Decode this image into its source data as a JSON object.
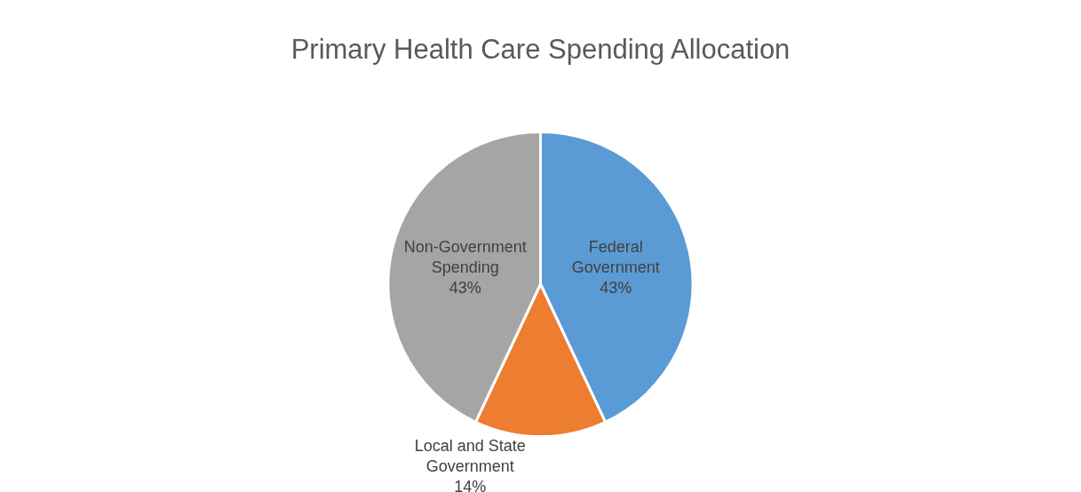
{
  "chart_data": {
    "type": "pie",
    "title": "Primary Health Care Spending Allocation",
    "categories": [
      "Federal Government",
      "Local and State Government",
      "Non-Government Spending"
    ],
    "values": [
      43,
      14,
      43
    ],
    "value_labels": [
      "43%",
      "14%",
      "43%"
    ],
    "colors": [
      "#5b9bd5",
      "#ed7d31",
      "#a5a5a5"
    ],
    "legend": false
  }
}
